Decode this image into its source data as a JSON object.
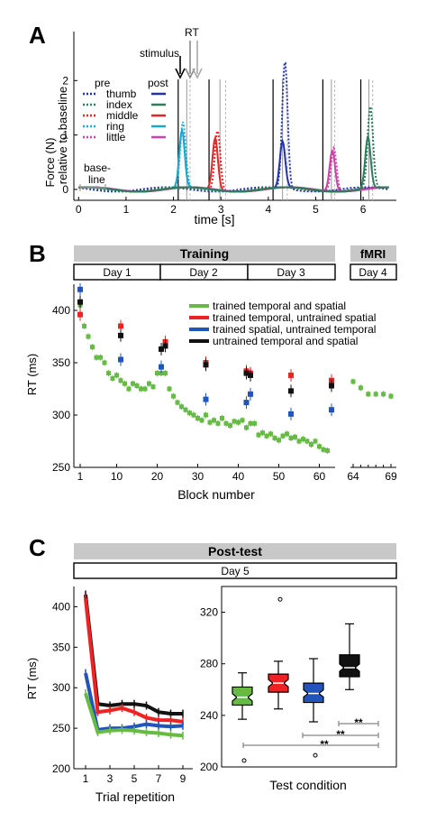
{
  "panel_letters": {
    "a": "A",
    "b": "B",
    "c": "C"
  },
  "colors": {
    "thumb": "#2233aa",
    "index": "#2e7d5b",
    "middle": "#e02828",
    "ring": "#1aa8cc",
    "little": "#cc44aa",
    "trained": "#66bb44",
    "temporal": "#ee2222",
    "spatial": "#2255bb",
    "untrained": "#111111",
    "banner": "#c8c8c8"
  },
  "panel_a": {
    "annotations": {
      "stimulus": "stimulus",
      "rt": "RT",
      "baseline_1": "base-",
      "baseline_2": "line"
    },
    "legend_headers": {
      "pre": "pre",
      "post": "post"
    },
    "fingers": [
      "thumb",
      "index",
      "middle",
      "ring",
      "little"
    ]
  },
  "panel_b": {
    "banners": {
      "training": "Training",
      "fmri": "fMRI"
    },
    "days": [
      "Day 1",
      "Day 2",
      "Day 3"
    ],
    "fmri_day": "Day 4"
  },
  "panel_c": {
    "banners": {
      "posttest": "Post-test"
    },
    "day": "Day 5",
    "significance": [
      "**",
      "**",
      "**"
    ]
  },
  "chart_data": [
    {
      "type": "line",
      "panel": "A",
      "ylabel": "Force (N)\nrelative to baseline",
      "xlabel": "time [s]",
      "xlim": [
        -0.1,
        6.7
      ],
      "ylim": [
        -0.2,
        2.9
      ],
      "xticks": [
        0,
        1,
        2,
        3,
        4,
        5,
        6
      ],
      "yticks": [
        0,
        1,
        2
      ],
      "stimulus_times": [
        2.1,
        2.75,
        4.1,
        5.15,
        5.95
      ],
      "rt_pre": [
        2.35,
        3.1,
        4.4,
        5.4,
        6.2
      ],
      "rt_post": [
        2.28,
        2.98,
        4.3,
        5.33,
        6.12
      ],
      "baseline_interval": [
        0,
        0.5
      ],
      "series": [
        {
          "name": "ring",
          "phase": "pre",
          "peak_time": 2.2,
          "peak": 1.2
        },
        {
          "name": "ring",
          "phase": "post",
          "peak_time": 2.18,
          "peak": 1.05
        },
        {
          "name": "middle",
          "phase": "pre",
          "peak_time": 2.93,
          "peak": 1.1
        },
        {
          "name": "middle",
          "phase": "post",
          "peak_time": 2.88,
          "peak": 0.95
        },
        {
          "name": "thumb",
          "phase": "pre",
          "peak_time": 4.35,
          "peak": 2.35
        },
        {
          "name": "thumb",
          "phase": "post",
          "peak_time": 4.3,
          "peak": 0.85
        },
        {
          "name": "little",
          "phase": "pre",
          "peak_time": 5.38,
          "peak": 0.8
        },
        {
          "name": "little",
          "phase": "post",
          "peak_time": 5.35,
          "peak": 0.75
        },
        {
          "name": "index",
          "phase": "pre",
          "peak_time": 6.15,
          "peak": 1.5
        },
        {
          "name": "index",
          "phase": "post",
          "peak_time": 6.1,
          "peak": 0.95
        }
      ]
    },
    {
      "type": "line",
      "panel": "B",
      "ylabel": "RT (ms)",
      "xlabel": "Block number",
      "ylim": [
        250,
        425
      ],
      "yticks": [
        250,
        300,
        350,
        400
      ],
      "xticks": [
        1,
        10,
        20,
        30,
        40,
        50,
        60,
        64,
        69
      ],
      "series": [
        {
          "name": "trained temporal and spatial",
          "x": [
            1,
            2,
            3,
            4,
            5,
            6,
            7,
            8,
            9,
            10,
            11,
            12,
            13,
            14,
            15,
            16,
            17,
            18,
            19,
            20,
            21,
            22,
            23,
            24,
            25,
            26,
            27,
            28,
            29,
            30,
            31,
            32,
            33,
            34,
            35,
            36,
            37,
            38,
            39,
            40,
            41,
            42,
            43,
            44,
            45,
            46,
            47,
            48,
            49,
            50,
            51,
            52,
            53,
            54,
            55,
            56,
            57,
            58,
            59,
            60,
            61,
            62,
            64,
            65,
            66,
            67,
            68,
            69
          ],
          "y": [
            405,
            385,
            375,
            365,
            355,
            355,
            350,
            340,
            335,
            338,
            333,
            330,
            325,
            330,
            328,
            325,
            325,
            330,
            327,
            340,
            340,
            340,
            325,
            318,
            312,
            308,
            305,
            302,
            300,
            297,
            295,
            300,
            293,
            295,
            292,
            297,
            292,
            290,
            294,
            293,
            295,
            288,
            292,
            292,
            281,
            283,
            280,
            282,
            278,
            276,
            280,
            282,
            278,
            279,
            275,
            277,
            275,
            272,
            275,
            270,
            267,
            266,
            332,
            326,
            320,
            320,
            320,
            318
          ]
        },
        {
          "name": "trained temporal, untrained spatial",
          "x": [
            1,
            11,
            22,
            32,
            42,
            43,
            53,
            63
          ],
          "y": [
            396,
            385,
            370,
            350,
            342,
            340,
            338,
            333
          ]
        },
        {
          "name": "trained spatial, untrained temporal",
          "x": [
            1,
            11,
            21,
            32,
            42,
            43,
            53,
            63
          ],
          "y": [
            420,
            353,
            346,
            315,
            312,
            320,
            301,
            305
          ]
        },
        {
          "name": "untrained temporal and spatial",
          "x": [
            1,
            11,
            21,
            22,
            32,
            42,
            43,
            53,
            63
          ],
          "y": [
            408,
            376,
            363,
            366,
            348,
            340,
            338,
            323,
            328
          ]
        }
      ]
    },
    {
      "type": "line",
      "panel": "C-left",
      "ylabel": "RT (ms)",
      "xlabel": "Trial repetition",
      "ylim": [
        200,
        425
      ],
      "yticks": [
        200,
        250,
        300,
        350,
        400
      ],
      "xticks": [
        1,
        3,
        5,
        7,
        9
      ],
      "series": [
        {
          "name": "untrained temporal and spatial",
          "x": [
            1,
            2,
            3,
            4,
            5,
            6,
            7,
            8,
            9
          ],
          "y": [
            415,
            280,
            278,
            280,
            280,
            278,
            270,
            268,
            268
          ]
        },
        {
          "name": "trained temporal, untrained spatial",
          "x": [
            1,
            2,
            3,
            4,
            5,
            6,
            7,
            8,
            9
          ],
          "y": [
            410,
            270,
            272,
            275,
            270,
            263,
            260,
            260,
            258
          ]
        },
        {
          "name": "trained spatial, untrained temporal",
          "x": [
            1,
            2,
            3,
            4,
            5,
            6,
            7,
            8,
            9
          ],
          "y": [
            318,
            248,
            250,
            250,
            252,
            255,
            253,
            252,
            253
          ]
        },
        {
          "name": "trained temporal and spatial",
          "x": [
            1,
            2,
            3,
            4,
            5,
            6,
            7,
            8,
            9
          ],
          "y": [
            293,
            245,
            247,
            248,
            247,
            245,
            244,
            242,
            241
          ]
        }
      ]
    },
    {
      "type": "box",
      "panel": "C-right",
      "xlabel": "Test condition",
      "ylim": [
        200,
        340
      ],
      "yticks": [
        200,
        240,
        280,
        320
      ],
      "boxes": [
        {
          "name": "trained temporal and spatial",
          "whisker_low": 237,
          "q1": 248,
          "median": 254,
          "q3": 262,
          "whisker_high": 273,
          "outliers": [
            205
          ]
        },
        {
          "name": "trained temporal, untrained spatial",
          "whisker_low": 245,
          "q1": 258,
          "median": 265,
          "q3": 272,
          "whisker_high": 282,
          "outliers": [
            330
          ]
        },
        {
          "name": "trained spatial, untrained temporal",
          "whisker_low": 235,
          "q1": 250,
          "median": 257,
          "q3": 265,
          "whisker_high": 284,
          "outliers": [
            209
          ]
        },
        {
          "name": "untrained temporal and spatial",
          "whisker_low": 260,
          "q1": 270,
          "median": 277,
          "q3": 287,
          "whisker_high": 311,
          "outliers": []
        }
      ]
    }
  ]
}
